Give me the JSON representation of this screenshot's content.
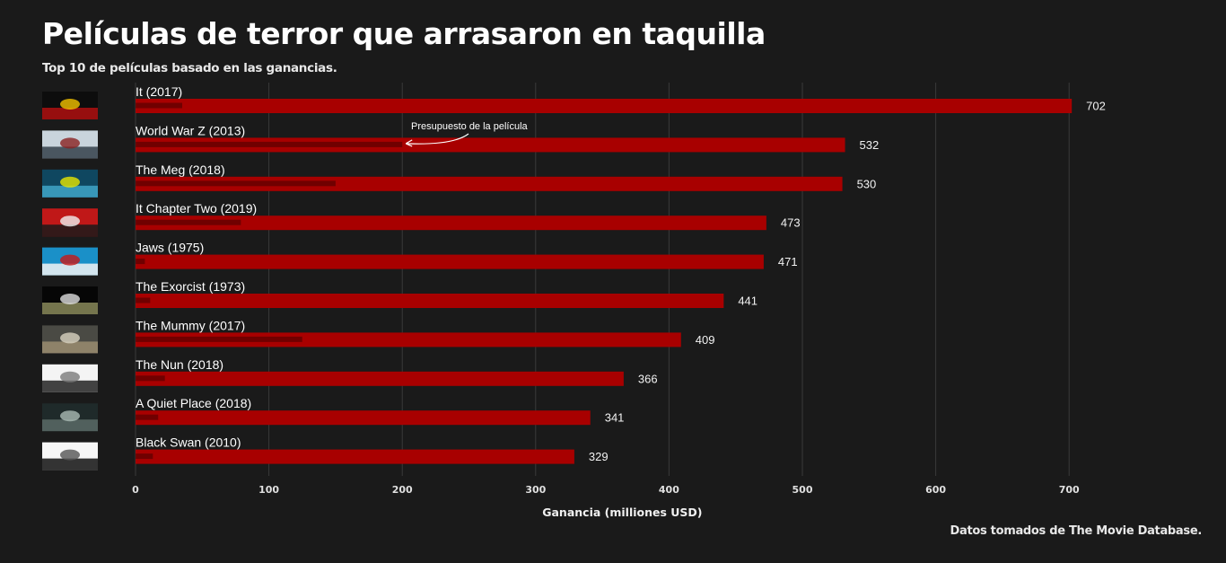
{
  "header": {
    "title": "Películas de terror que arrasaron en taquilla",
    "subtitle": "Top 10 de películas basado en las ganancias."
  },
  "footer": {
    "caption": "Datos tomados de The Movie Database."
  },
  "colors": {
    "background": "#1a1a1a",
    "revenue_bar": "#a80000",
    "budget_bar": "#700000",
    "gridline": "#3a3a3a"
  },
  "chart_data": {
    "type": "bar",
    "orientation": "horizontal",
    "xlabel": "Ganancia (milliones USD)",
    "ylabel": "",
    "xlim": [
      0,
      760
    ],
    "xticks": [
      0,
      100,
      200,
      300,
      400,
      500,
      600,
      700
    ],
    "grid": true,
    "categories": [
      "It (2017)",
      "World War Z (2013)",
      "The Meg (2018)",
      "It Chapter Two (2019)",
      "Jaws (1975)",
      "The Exorcist (1973)",
      "The Mummy (2017)",
      "The Nun (2018)",
      "A Quiet Place (2018)",
      "Black Swan (2010)"
    ],
    "series": [
      {
        "values": [
          702,
          532,
          530,
          473,
          471,
          441,
          409,
          366,
          341,
          329
        ]
      },
      {
        "values": [
          35,
          200,
          150,
          79,
          7,
          11,
          125,
          22,
          17,
          13
        ]
      }
    ],
    "annotation": {
      "text": "Presupuesto de la película",
      "target_category": "World War Z (2013)",
      "target_value": 200
    },
    "poster_icons": [
      "it-2017-poster-icon",
      "world-war-z-poster-icon",
      "the-meg-poster-icon",
      "it-chapter-two-poster-icon",
      "jaws-poster-icon",
      "the-exorcist-poster-icon",
      "the-mummy-poster-icon",
      "the-nun-poster-icon",
      "a-quiet-place-poster-icon",
      "black-swan-poster-icon"
    ]
  }
}
